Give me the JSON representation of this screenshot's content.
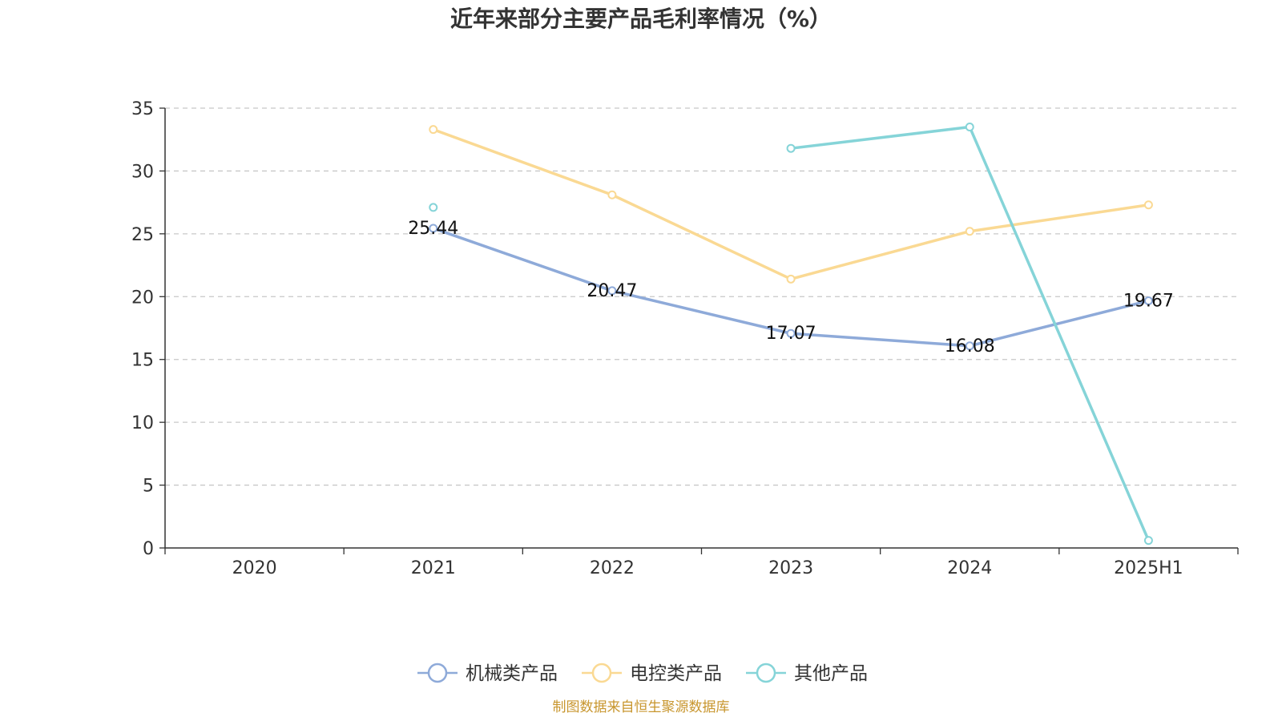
{
  "chart_data": {
    "type": "line",
    "title": "近年来部分主要产品毛利率情况（%）",
    "categories": [
      "2020",
      "2021",
      "2022",
      "2023",
      "2024",
      "2025H1"
    ],
    "ylim": [
      0,
      35
    ],
    "yticks": [
      0,
      5,
      10,
      15,
      20,
      25,
      30,
      35
    ],
    "grid": true,
    "legend_position": "bottom-center",
    "series": [
      {
        "name": "机械类产品",
        "color": "#8eaad9",
        "values": [
          null,
          25.44,
          20.47,
          17.07,
          16.08,
          19.67
        ],
        "show_labels": true
      },
      {
        "name": "电控类产品",
        "color": "#fad993",
        "values": [
          null,
          33.3,
          28.1,
          21.4,
          25.2,
          27.3
        ],
        "show_labels": false
      },
      {
        "name": "其他产品",
        "color": "#85d4d8",
        "values": [
          null,
          27.1,
          null,
          31.8,
          33.5,
          0.6
        ],
        "show_labels": false
      }
    ]
  },
  "source": "制图数据来自恒生聚源数据库"
}
